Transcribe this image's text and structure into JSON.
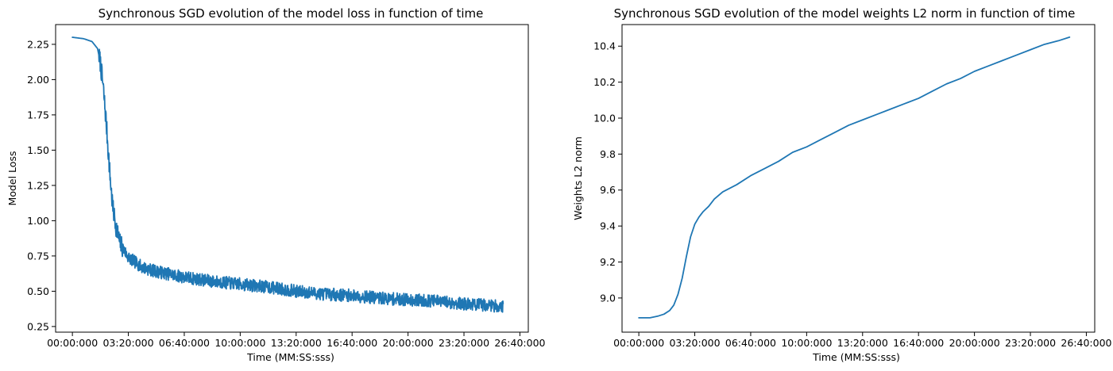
{
  "chart_data": [
    {
      "type": "line",
      "title": "Synchronous SGD evolution of the model loss in function of time",
      "xlabel": "Time (MM:SS:sss)",
      "ylabel": "Model Loss",
      "color": "#1f77b4",
      "grid": false,
      "xlim": [
        -60,
        1630
      ],
      "ylim": [
        0.21,
        2.39
      ],
      "xticks": [
        {
          "value": 0,
          "label": "00:00:000"
        },
        {
          "value": 200,
          "label": "03:20:000"
        },
        {
          "value": 400,
          "label": "06:40:000"
        },
        {
          "value": 600,
          "label": "10:00:000"
        },
        {
          "value": 800,
          "label": "13:20:000"
        },
        {
          "value": 1000,
          "label": "16:40:000"
        },
        {
          "value": 1200,
          "label": "20:00:000"
        },
        {
          "value": 1400,
          "label": "23:20:000"
        },
        {
          "value": 1600,
          "label": "26:40:000"
        }
      ],
      "yticks": [
        {
          "value": 0.25,
          "label": "0.25"
        },
        {
          "value": 0.5,
          "label": "0.50"
        },
        {
          "value": 0.75,
          "label": "0.75"
        },
        {
          "value": 1.0,
          "label": "1.00"
        },
        {
          "value": 1.25,
          "label": "1.25"
        },
        {
          "value": 1.5,
          "label": "1.50"
        },
        {
          "value": 1.75,
          "label": "1.75"
        },
        {
          "value": 2.0,
          "label": "2.00"
        },
        {
          "value": 2.25,
          "label": "2.25"
        }
      ],
      "x_end": 1540,
      "trend_points": [
        [
          0,
          2.3
        ],
        [
          40,
          2.29
        ],
        [
          70,
          2.27
        ],
        [
          90,
          2.22
        ],
        [
          100,
          2.12
        ],
        [
          110,
          1.95
        ],
        [
          120,
          1.72
        ],
        [
          128,
          1.5
        ],
        [
          136,
          1.28
        ],
        [
          145,
          1.08
        ],
        [
          155,
          0.97
        ],
        [
          170,
          0.84
        ],
        [
          200,
          0.74
        ],
        [
          250,
          0.67
        ],
        [
          300,
          0.64
        ],
        [
          400,
          0.6
        ],
        [
          500,
          0.57
        ],
        [
          600,
          0.55
        ],
        [
          700,
          0.53
        ],
        [
          800,
          0.5
        ],
        [
          900,
          0.48
        ],
        [
          1000,
          0.47
        ],
        [
          1100,
          0.45
        ],
        [
          1200,
          0.44
        ],
        [
          1300,
          0.43
        ],
        [
          1400,
          0.41
        ],
        [
          1500,
          0.4
        ],
        [
          1540,
          0.39
        ]
      ],
      "noise_amplitude": 0.045
    },
    {
      "type": "line",
      "title": "Synchronous SGD evolution of the model weights L2 norm in function of time",
      "xlabel": "Time (MM:SS:sss)",
      "ylabel": "Weights L2 norm",
      "color": "#1f77b4",
      "grid": false,
      "xlim": [
        -60,
        1630
      ],
      "ylim": [
        8.81,
        10.52
      ],
      "xticks": [
        {
          "value": 0,
          "label": "00:00:000"
        },
        {
          "value": 200,
          "label": "03:20:000"
        },
        {
          "value": 400,
          "label": "06:40:000"
        },
        {
          "value": 600,
          "label": "10:00:000"
        },
        {
          "value": 800,
          "label": "13:20:000"
        },
        {
          "value": 1000,
          "label": "16:40:000"
        },
        {
          "value": 1200,
          "label": "20:00:000"
        },
        {
          "value": 1400,
          "label": "23:20:000"
        },
        {
          "value": 1600,
          "label": "26:40:000"
        }
      ],
      "yticks": [
        {
          "value": 9.0,
          "label": "9.0"
        },
        {
          "value": 9.2,
          "label": "9.2"
        },
        {
          "value": 9.4,
          "label": "9.4"
        },
        {
          "value": 9.6,
          "label": "9.6"
        },
        {
          "value": 9.8,
          "label": "9.8"
        },
        {
          "value": 10.0,
          "label": "10.0"
        },
        {
          "value": 10.2,
          "label": "10.2"
        },
        {
          "value": 10.4,
          "label": "10.4"
        }
      ],
      "points": [
        [
          0,
          8.89
        ],
        [
          40,
          8.89
        ],
        [
          70,
          8.9
        ],
        [
          90,
          8.91
        ],
        [
          110,
          8.93
        ],
        [
          125,
          8.96
        ],
        [
          140,
          9.02
        ],
        [
          155,
          9.11
        ],
        [
          170,
          9.23
        ],
        [
          185,
          9.34
        ],
        [
          200,
          9.41
        ],
        [
          215,
          9.45
        ],
        [
          230,
          9.48
        ],
        [
          250,
          9.51
        ],
        [
          270,
          9.55
        ],
        [
          300,
          9.59
        ],
        [
          350,
          9.63
        ],
        [
          400,
          9.68
        ],
        [
          450,
          9.72
        ],
        [
          500,
          9.76
        ],
        [
          550,
          9.81
        ],
        [
          600,
          9.84
        ],
        [
          650,
          9.88
        ],
        [
          700,
          9.92
        ],
        [
          750,
          9.96
        ],
        [
          800,
          9.99
        ],
        [
          850,
          10.02
        ],
        [
          900,
          10.05
        ],
        [
          950,
          10.08
        ],
        [
          1000,
          10.11
        ],
        [
          1050,
          10.15
        ],
        [
          1100,
          10.19
        ],
        [
          1150,
          10.22
        ],
        [
          1200,
          10.26
        ],
        [
          1250,
          10.29
        ],
        [
          1300,
          10.32
        ],
        [
          1350,
          10.35
        ],
        [
          1400,
          10.38
        ],
        [
          1450,
          10.41
        ],
        [
          1500,
          10.43
        ],
        [
          1540,
          10.45
        ]
      ]
    }
  ]
}
